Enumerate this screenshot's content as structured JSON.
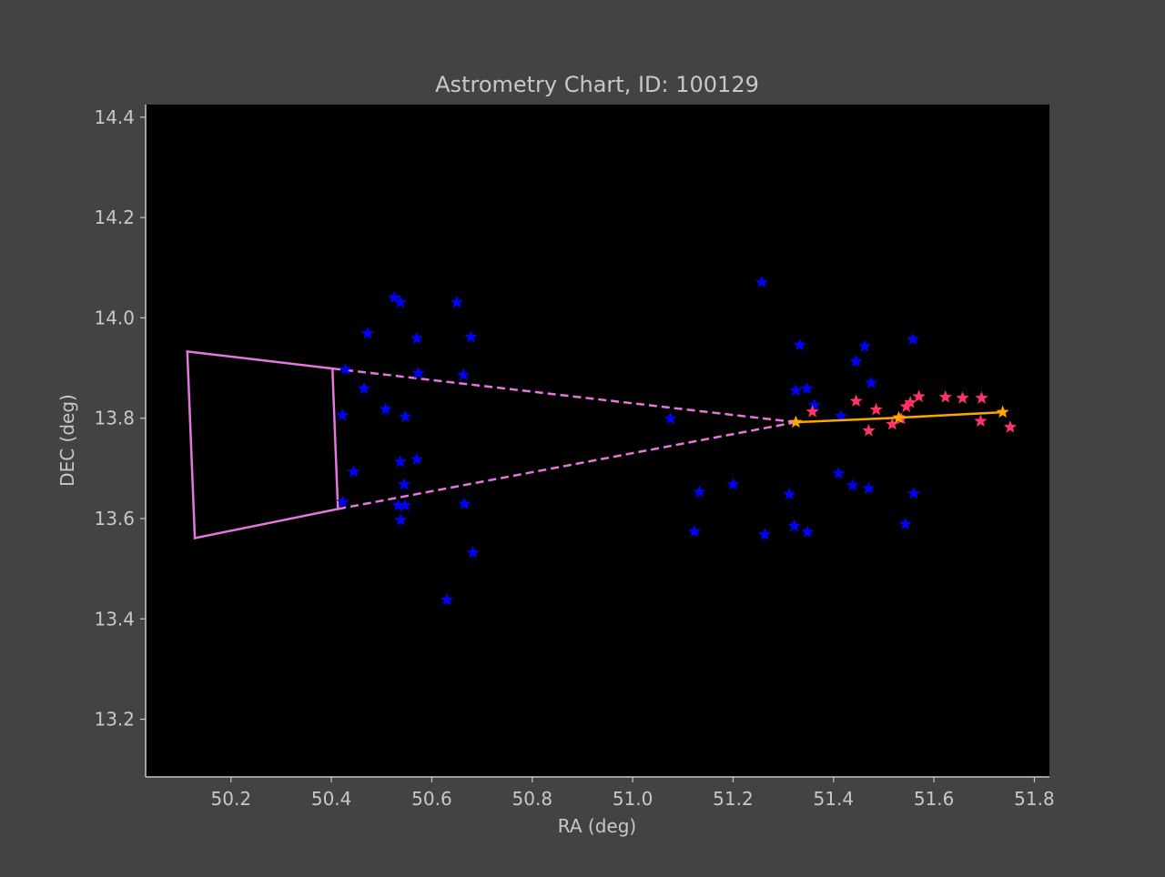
{
  "chart_data": {
    "type": "scatter",
    "title": "Astrometry Chart, ID: 100129",
    "xlabel": "RA (deg)",
    "ylabel": "DEC (deg)",
    "xlim": [
      50.03,
      51.83
    ],
    "ylim": [
      13.085,
      14.425
    ],
    "xticks": [
      "50.2",
      "50.4",
      "50.6",
      "50.8",
      "51.0",
      "51.2",
      "51.4",
      "51.6",
      "51.8"
    ],
    "yticks": [
      "13.2",
      "13.4",
      "13.6",
      "13.8",
      "14.0",
      "14.2",
      "14.4"
    ],
    "grid": false,
    "background": "#000000",
    "colors": {
      "field_stars": "#0000ff",
      "track_stars": "#ff3366",
      "track_line": "#ffa500",
      "fov": "#e377e0",
      "axis_text": "#c8c8c8",
      "figure_bg": "#434343"
    },
    "series": [
      {
        "marker": "star",
        "points": [
          [
            50.525,
            14.04
          ],
          [
            50.537,
            14.031
          ],
          [
            50.65,
            14.031
          ],
          [
            50.472,
            13.969
          ],
          [
            50.57,
            13.959
          ],
          [
            50.678,
            13.962
          ],
          [
            50.428,
            13.897
          ],
          [
            50.573,
            13.89
          ],
          [
            50.663,
            13.886
          ],
          [
            50.465,
            13.859
          ],
          [
            50.508,
            13.818
          ],
          [
            50.422,
            13.806
          ],
          [
            50.547,
            13.803
          ],
          [
            50.537,
            13.713
          ],
          [
            50.57,
            13.718
          ],
          [
            50.444,
            13.693
          ],
          [
            50.545,
            13.668
          ],
          [
            50.533,
            13.626
          ],
          [
            50.547,
            13.626
          ],
          [
            50.423,
            13.633
          ],
          [
            50.538,
            13.597
          ],
          [
            50.665,
            13.629
          ],
          [
            50.682,
            13.532
          ],
          [
            50.63,
            13.438
          ],
          [
            51.257,
            14.071
          ],
          [
            51.333,
            13.946
          ],
          [
            51.462,
            13.943
          ],
          [
            51.445,
            13.913
          ],
          [
            51.558,
            13.957
          ],
          [
            51.475,
            13.87
          ],
          [
            51.325,
            13.855
          ],
          [
            51.347,
            13.859
          ],
          [
            51.362,
            13.826
          ],
          [
            51.415,
            13.804
          ],
          [
            51.075,
            13.799
          ],
          [
            51.41,
            13.69
          ],
          [
            51.438,
            13.666
          ],
          [
            51.47,
            13.66
          ],
          [
            51.56,
            13.65
          ],
          [
            51.133,
            13.653
          ],
          [
            51.2,
            13.668
          ],
          [
            51.312,
            13.648
          ],
          [
            51.123,
            13.574
          ],
          [
            51.263,
            13.568
          ],
          [
            51.322,
            13.585
          ],
          [
            51.348,
            13.573
          ],
          [
            51.543,
            13.589
          ]
        ]
      },
      {
        "marker": "star",
        "points": [
          [
            51.358,
            13.813
          ],
          [
            51.445,
            13.834
          ],
          [
            51.47,
            13.775
          ],
          [
            51.485,
            13.817
          ],
          [
            51.517,
            13.788
          ],
          [
            51.535,
            13.799
          ],
          [
            51.545,
            13.823
          ],
          [
            51.553,
            13.831
          ],
          [
            51.57,
            13.843
          ],
          [
            51.623,
            13.842
          ],
          [
            51.657,
            13.84
          ],
          [
            51.695,
            13.84
          ],
          [
            51.693,
            13.794
          ],
          [
            51.752,
            13.782
          ]
        ]
      },
      {
        "marker": "star-line",
        "points": [
          [
            51.325,
            13.792
          ],
          [
            51.53,
            13.801
          ],
          [
            51.737,
            13.812
          ]
        ]
      }
    ],
    "fov_box": [
      [
        50.113,
        13.933
      ],
      [
        50.402,
        13.899
      ],
      [
        50.413,
        13.619
      ],
      [
        50.128,
        13.561
      ]
    ],
    "fov_rays": [
      [
        [
          50.402,
          13.899
        ],
        [
          51.325,
          13.792
        ]
      ],
      [
        [
          50.413,
          13.619
        ],
        [
          51.325,
          13.792
        ]
      ]
    ]
  }
}
